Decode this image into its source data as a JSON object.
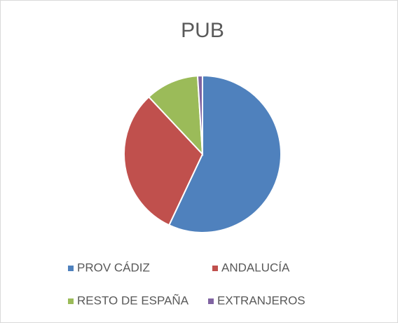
{
  "chart_data": {
    "type": "pie",
    "title": "PUB",
    "categories": [
      "PROV CÁDIZ",
      "ANDALUCÍA",
      "RESTO DE ESPAÑA",
      "EXTRANJEROS"
    ],
    "values": [
      57,
      31,
      11,
      1
    ],
    "colors": [
      "#4f81bd",
      "#c0504d",
      "#9bbb59",
      "#8064a2"
    ],
    "legend": "bottom"
  }
}
